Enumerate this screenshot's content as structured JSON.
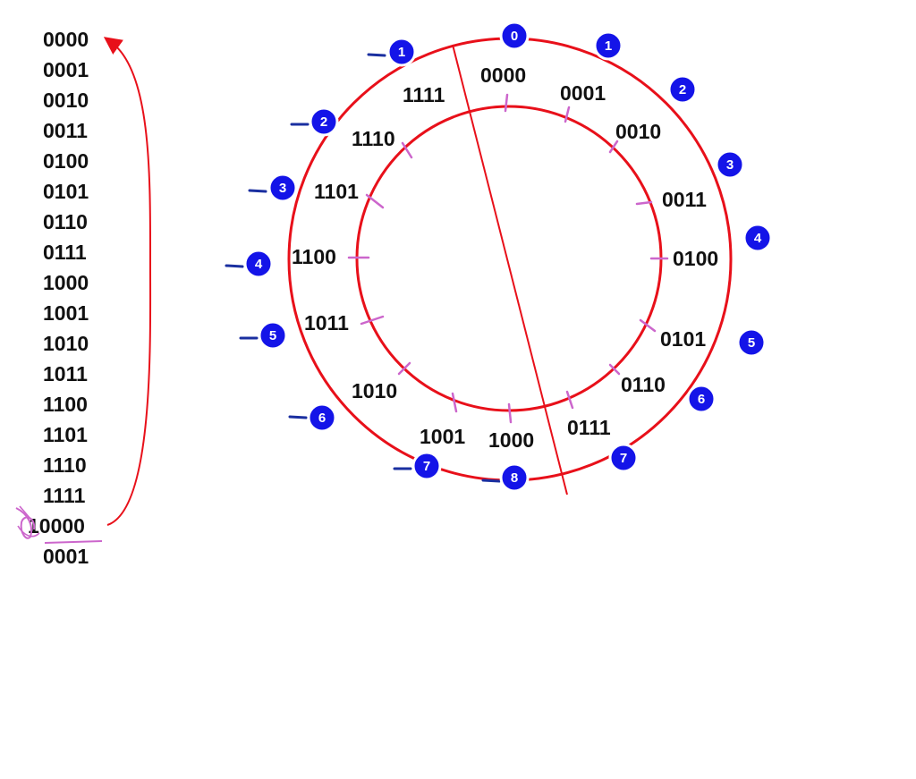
{
  "colors": {
    "circle": "#e8101a",
    "text": "#111111",
    "badge_fill": "#1414e8",
    "badge_ring": "#ffffff",
    "dash": "#1a2fa0",
    "tick": "#cc66cc"
  },
  "sequence": {
    "items": [
      "0000",
      "0001",
      "0010",
      "0011",
      "0100",
      "0101",
      "0110",
      "0111",
      "1000",
      "1001",
      "1010",
      "1011",
      "1100",
      "1101",
      "1110",
      "1111",
      "10000",
      "0001"
    ],
    "overflow_digit": "1"
  },
  "ring_labels": [
    "0000",
    "0001",
    "0010",
    "0011",
    "0100",
    "0101",
    "0110",
    "0111",
    "1000",
    "1001",
    "1010",
    "1011",
    "1100",
    "1101",
    "1110",
    "1111"
  ],
  "right_badges": [
    "0",
    "1",
    "2",
    "3",
    "4",
    "5",
    "6",
    "7"
  ],
  "left_badges": [
    "1",
    "2",
    "3",
    "4",
    "5",
    "6",
    "7",
    "8"
  ]
}
